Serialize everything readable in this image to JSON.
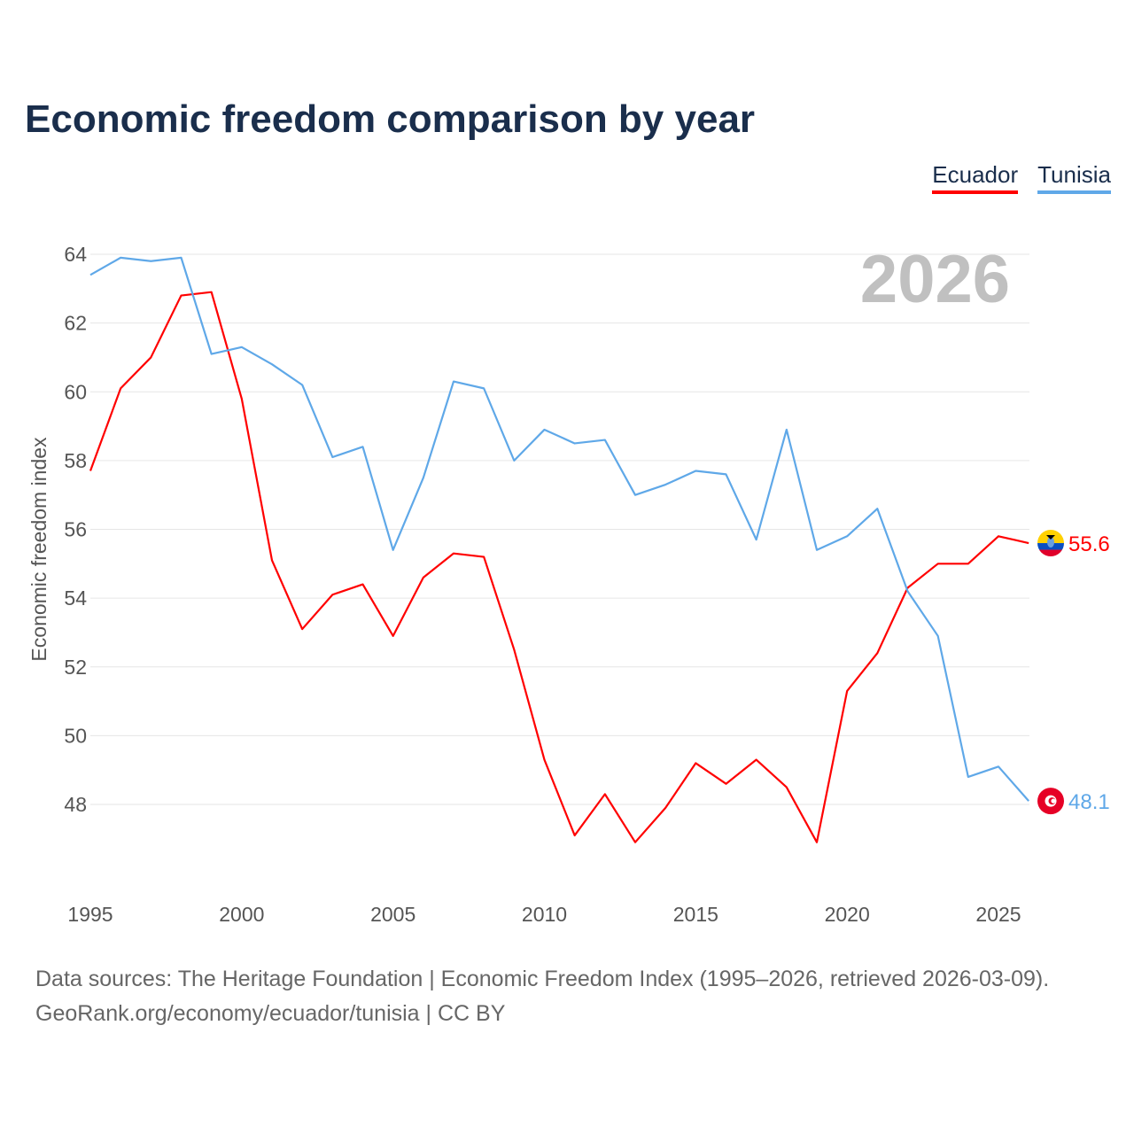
{
  "title": "Economic freedom comparison by year",
  "footer": {
    "line1": "Data sources: The Heritage Foundation | Economic Freedom Index (1995–2026, retrieved 2026-03-09).",
    "line2": "GeoRank.org/economy/ecuador/tunisia | CC BY"
  },
  "chart_data": {
    "type": "line",
    "title": "Economic freedom comparison by year",
    "ylabel": "Economic freedom index",
    "xlabel": "",
    "year_watermark": "2026",
    "xlim": [
      1995,
      2026
    ],
    "ylim": [
      46,
      64.5
    ],
    "xticks": [
      1995,
      2000,
      2005,
      2010,
      2015,
      2020,
      2025
    ],
    "yticks": [
      48,
      50,
      52,
      54,
      56,
      58,
      60,
      62,
      64
    ],
    "grid": true,
    "legend_position": "top-right",
    "x": [
      1995,
      1996,
      1997,
      1998,
      1999,
      2000,
      2001,
      2002,
      2003,
      2004,
      2005,
      2006,
      2007,
      2008,
      2009,
      2010,
      2011,
      2012,
      2013,
      2014,
      2015,
      2016,
      2017,
      2018,
      2019,
      2020,
      2021,
      2022,
      2023,
      2024,
      2025,
      2026
    ],
    "series": [
      {
        "name": "Ecuador",
        "color": "#ff0000",
        "end_label": "55.6",
        "values": [
          57.7,
          60.1,
          61.0,
          62.8,
          62.9,
          59.8,
          55.1,
          53.1,
          54.1,
          54.4,
          52.9,
          54.6,
          55.3,
          55.2,
          52.5,
          49.3,
          47.1,
          48.3,
          46.9,
          47.9,
          49.2,
          48.6,
          49.3,
          48.5,
          46.9,
          51.3,
          52.4,
          54.3,
          55.0,
          55.0,
          55.8,
          55.6
        ]
      },
      {
        "name": "Tunisia",
        "color": "#5fa8e8",
        "end_label": "48.1",
        "values": [
          63.4,
          63.9,
          63.8,
          63.9,
          61.1,
          61.3,
          60.8,
          60.2,
          58.1,
          58.4,
          55.4,
          57.5,
          60.3,
          60.1,
          58.0,
          58.9,
          58.5,
          58.6,
          57.0,
          57.3,
          57.7,
          57.6,
          55.7,
          58.9,
          55.4,
          55.8,
          56.6,
          54.2,
          52.9,
          48.8,
          49.1,
          48.1
        ]
      }
    ]
  }
}
